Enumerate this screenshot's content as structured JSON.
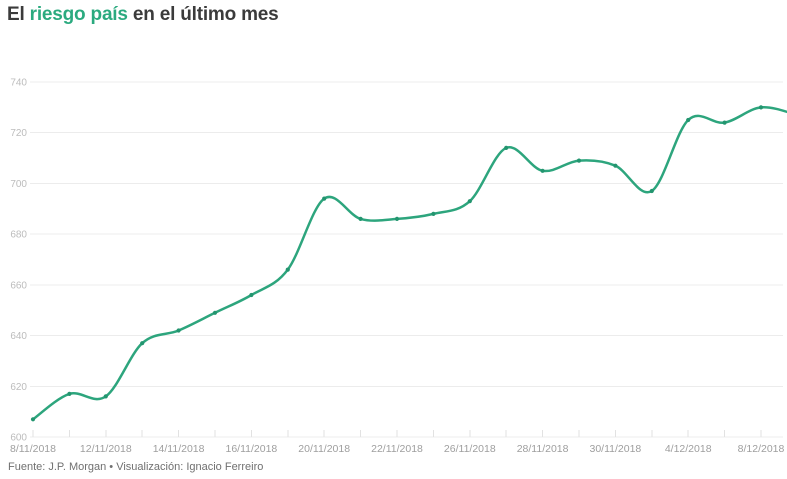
{
  "title": {
    "prefix": "El ",
    "highlight": "riesgo país",
    "suffix": " en el último mes"
  },
  "footer": {
    "text": "Fuente: J.P. Morgan • Visualización: Ignacio Ferreiro"
  },
  "colors": {
    "background": "#ffffff",
    "title_text": "#3b3b3b",
    "title_highlight": "#2baa7f",
    "line": "#2da57d",
    "marker": "#23956f",
    "grid": "#ececec",
    "tick": "#e2e2e2",
    "y_label": "#bcbcbc",
    "x_label": "#9e9e9e",
    "footer": "#707070"
  },
  "chart_data": {
    "type": "line",
    "title": "El riesgo país en el último mes",
    "xlabel": "",
    "ylabel": "",
    "ylim": [
      600,
      740
    ],
    "y_ticks": [
      600,
      620,
      640,
      660,
      680,
      700,
      720,
      740
    ],
    "x_tick_labels": [
      "8/11/2018",
      "12/11/2018",
      "14/11/2018",
      "16/11/2018",
      "20/11/2018",
      "22/11/2018",
      "26/11/2018",
      "28/11/2018",
      "30/11/2018",
      "4/12/2018",
      "8/12/2018"
    ],
    "x_labels_every": 2,
    "values": [
      607,
      617,
      616,
      637,
      642,
      649,
      656,
      666,
      694,
      686,
      686,
      688,
      693,
      714,
      705,
      709,
      707,
      697,
      725,
      724,
      730,
      727
    ],
    "grid": "horizontal",
    "legend": "none",
    "smooth": true,
    "markers": true
  }
}
